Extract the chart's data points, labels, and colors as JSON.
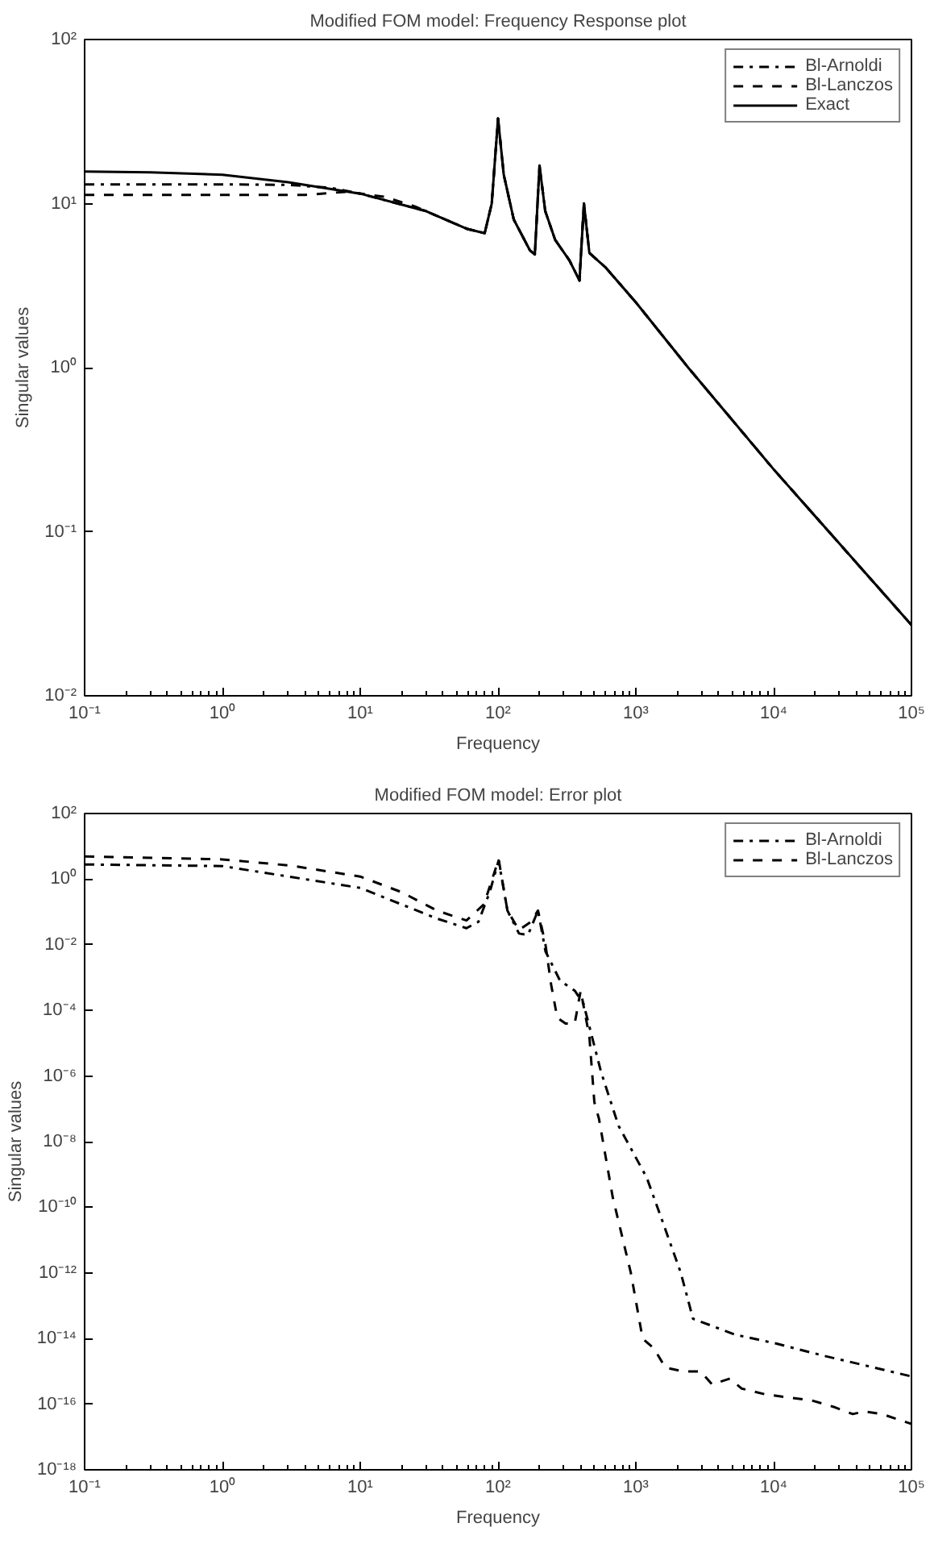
{
  "chart_data": [
    {
      "type": "line",
      "title": "Modified FOM model: Frequency Response plot",
      "xlabel": "Frequency",
      "ylabel": "Singular values",
      "log": "xy",
      "grid": false,
      "legend": "top right",
      "xlim": [
        0.1,
        100000
      ],
      "ylim": [
        0.01,
        100
      ],
      "xticks": [
        {
          "value": 0.1,
          "label": "10⁻¹"
        },
        {
          "value": 1,
          "label": "10⁰"
        },
        {
          "value": 10,
          "label": "10¹"
        },
        {
          "value": 100,
          "label": "10²"
        },
        {
          "value": 1000,
          "label": "10³"
        },
        {
          "value": 10000,
          "label": "10⁴"
        },
        {
          "value": 100000,
          "label": "10⁵"
        }
      ],
      "yticks": [
        {
          "value": 0.01,
          "label": "10⁻²"
        },
        {
          "value": 0.1,
          "label": "10⁻¹"
        },
        {
          "value": 1,
          "label": "10⁰"
        },
        {
          "value": 10,
          "label": "10¹"
        },
        {
          "value": 100,
          "label": "10²"
        }
      ],
      "series": [
        {
          "name": "Bl-Arnoldi",
          "color": "#000000",
          "line_style": "dashdot",
          "x": [
            0.1,
            1,
            3,
            6,
            10,
            30,
            60,
            80,
            90,
            100,
            110,
            130,
            170,
            185,
            200,
            220,
            260,
            330,
            390,
            420,
            460,
            600,
            1000,
            2400,
            10000,
            100000
          ],
          "values": [
            13.1,
            13.1,
            13,
            12.5,
            11.5,
            9,
            7,
            6.6,
            10,
            33,
            15,
            8,
            5.2,
            4.9,
            17,
            9,
            6,
            4.5,
            3.4,
            10,
            5,
            4.1,
            2.5,
            1,
            0.24,
            0.027
          ]
        },
        {
          "name": "Bl-Lanczos",
          "color": "#000000",
          "line_style": "dashed",
          "x": [
            0.1,
            1,
            4,
            8,
            15,
            25,
            60,
            80,
            90,
            100,
            110,
            130,
            170,
            185,
            200,
            220,
            260,
            330,
            390,
            420,
            460,
            600,
            1000,
            2400,
            10000,
            100000
          ],
          "values": [
            11.3,
            11.3,
            11.3,
            11.8,
            11,
            9.6,
            7,
            6.6,
            10,
            33,
            15,
            8,
            5.2,
            4.9,
            17,
            9,
            6,
            4.5,
            3.4,
            10,
            5,
            4.1,
            2.5,
            1,
            0.24,
            0.027
          ]
        },
        {
          "name": "Exact",
          "color": "#000000",
          "line_style": "solid",
          "x": [
            0.1,
            0.3,
            1,
            3,
            10,
            30,
            60,
            80,
            90,
            100,
            110,
            130,
            170,
            185,
            200,
            220,
            260,
            330,
            390,
            420,
            460,
            600,
            1000,
            2400,
            10000,
            100000
          ],
          "values": [
            15.7,
            15.5,
            15,
            13.5,
            11.5,
            9,
            7,
            6.6,
            10,
            33,
            15,
            8,
            5.2,
            4.9,
            17,
            9,
            6,
            4.5,
            3.4,
            10,
            5,
            4.1,
            2.5,
            1,
            0.24,
            0.027
          ]
        }
      ]
    },
    {
      "type": "line",
      "title": "Modified FOM model: Error plot",
      "xlabel": "Frequency",
      "ylabel": "Singular values",
      "log": "xy",
      "grid": false,
      "legend": "top right",
      "xlim": [
        0.1,
        100000
      ],
      "ylim": [
        1e-18,
        100
      ],
      "xticks": [
        {
          "value": 0.1,
          "label": "10⁻¹"
        },
        {
          "value": 1,
          "label": "10⁰"
        },
        {
          "value": 10,
          "label": "10¹"
        },
        {
          "value": 100,
          "label": "10²"
        },
        {
          "value": 1000,
          "label": "10³"
        },
        {
          "value": 10000,
          "label": "10⁴"
        },
        {
          "value": 100000,
          "label": "10⁵"
        }
      ],
      "yticks": [
        {
          "value": 1e-18,
          "label": "10⁻¹⁸"
        },
        {
          "value": 1e-16,
          "label": "10⁻¹⁶"
        },
        {
          "value": 1e-14,
          "label": "10⁻¹⁴"
        },
        {
          "value": 1e-12,
          "label": "10⁻¹²"
        },
        {
          "value": 1e-10,
          "label": "10⁻¹⁰"
        },
        {
          "value": 1e-08,
          "label": "10⁻⁸"
        },
        {
          "value": 1e-06,
          "label": "10⁻⁶"
        },
        {
          "value": 0.0001,
          "label": "10⁻⁴"
        },
        {
          "value": 0.01,
          "label": "10⁻²"
        },
        {
          "value": 1,
          "label": "10⁰"
        },
        {
          "value": 100,
          "label": "10²"
        }
      ],
      "series": [
        {
          "name": "Bl-Arnoldi",
          "color": "#000000",
          "line_style": "dashdot",
          "x": [
            0.1,
            1,
            10,
            36,
            59,
            72,
            87,
            101,
            117,
            142,
            165,
            195,
            221,
            282,
            360,
            417,
            480,
            560,
            750,
            1200,
            1590,
            2120,
            2600,
            5300,
            10500,
            23000,
            50000,
            100000
          ],
          "values": [
            2.8,
            2.5,
            0.54,
            0.063,
            0.032,
            0.05,
            0.4,
            3.7,
            0.11,
            0.022,
            0.02,
            0.11,
            0.0063,
            0.0008,
            0.0004,
            0.00016,
            1.6e-05,
            1.3e-06,
            3e-08,
            8e-10,
            3e-11,
            1e-12,
            4e-14,
            1.3e-14,
            7e-15,
            3e-15,
            1.4e-15,
            7e-16
          ]
        },
        {
          "name": "Bl-Lanczos",
          "color": "#000000",
          "line_style": "dashed",
          "x": [
            0.1,
            1,
            3.1,
            10,
            20,
            36,
            59,
            79,
            101,
            117,
            142,
            173,
            195,
            221,
            243,
            269,
            309,
            360,
            398,
            460,
            500,
            540,
            680,
            920,
            1120,
            1350,
            1640,
            2200,
            2950,
            3580,
            4810,
            5850,
            8650,
            12800,
            18900,
            27900,
            37500,
            45600,
            61200,
            100000
          ],
          "values": [
            4.9,
            4,
            2.6,
            1.2,
            0.4,
            0.11,
            0.055,
            0.17,
            4,
            0.11,
            0.028,
            0.05,
            0.11,
            0.01,
            0.0006,
            6e-05,
            4e-05,
            4e-05,
            0.0004,
            1.6e-05,
            1.6e-07,
            5e-08,
            2e-10,
            1e-12,
            1e-14,
            5e-15,
            1.3e-15,
            1e-15,
            1e-15,
            4e-16,
            6e-16,
            3e-16,
            2e-16,
            1.6e-16,
            1.3e-16,
            8e-17,
            5e-17,
            6e-17,
            5e-17,
            2.5e-17
          ]
        }
      ]
    }
  ]
}
